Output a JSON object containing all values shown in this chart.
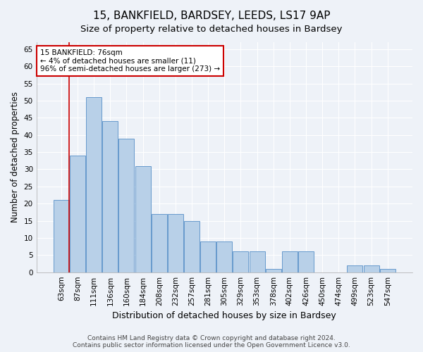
{
  "title1": "15, BANKFIELD, BARDSEY, LEEDS, LS17 9AP",
  "title2": "Size of property relative to detached houses in Bardsey",
  "xlabel": "Distribution of detached houses by size in Bardsey",
  "ylabel": "Number of detached properties",
  "categories": [
    "63sqm",
    "87sqm",
    "111sqm",
    "136sqm",
    "160sqm",
    "184sqm",
    "208sqm",
    "232sqm",
    "257sqm",
    "281sqm",
    "305sqm",
    "329sqm",
    "353sqm",
    "378sqm",
    "402sqm",
    "426sqm",
    "450sqm",
    "474sqm",
    "499sqm",
    "523sqm",
    "547sqm"
  ],
  "values": [
    21,
    34,
    51,
    44,
    39,
    31,
    17,
    17,
    15,
    9,
    9,
    6,
    6,
    1,
    6,
    6,
    0,
    0,
    2,
    2,
    1
  ],
  "bar_color": "#b8d0e8",
  "bar_edge_color": "#6699cc",
  "highlight_color": "#cc0000",
  "annotation_text": "15 BANKFIELD: 76sqm\n← 4% of detached houses are smaller (11)\n96% of semi-detached houses are larger (273) →",
  "annotation_box_color": "#ffffff",
  "annotation_box_edge": "#cc0000",
  "ylim": [
    0,
    67
  ],
  "yticks": [
    0,
    5,
    10,
    15,
    20,
    25,
    30,
    35,
    40,
    45,
    50,
    55,
    60,
    65
  ],
  "footer1": "Contains HM Land Registry data © Crown copyright and database right 2024.",
  "footer2": "Contains public sector information licensed under the Open Government Licence v3.0.",
  "bg_color": "#eef2f8",
  "grid_color": "#ffffff",
  "title1_fontsize": 11,
  "title2_fontsize": 9.5,
  "xlabel_fontsize": 9,
  "ylabel_fontsize": 8.5,
  "tick_fontsize": 7.5,
  "footer_fontsize": 6.5
}
